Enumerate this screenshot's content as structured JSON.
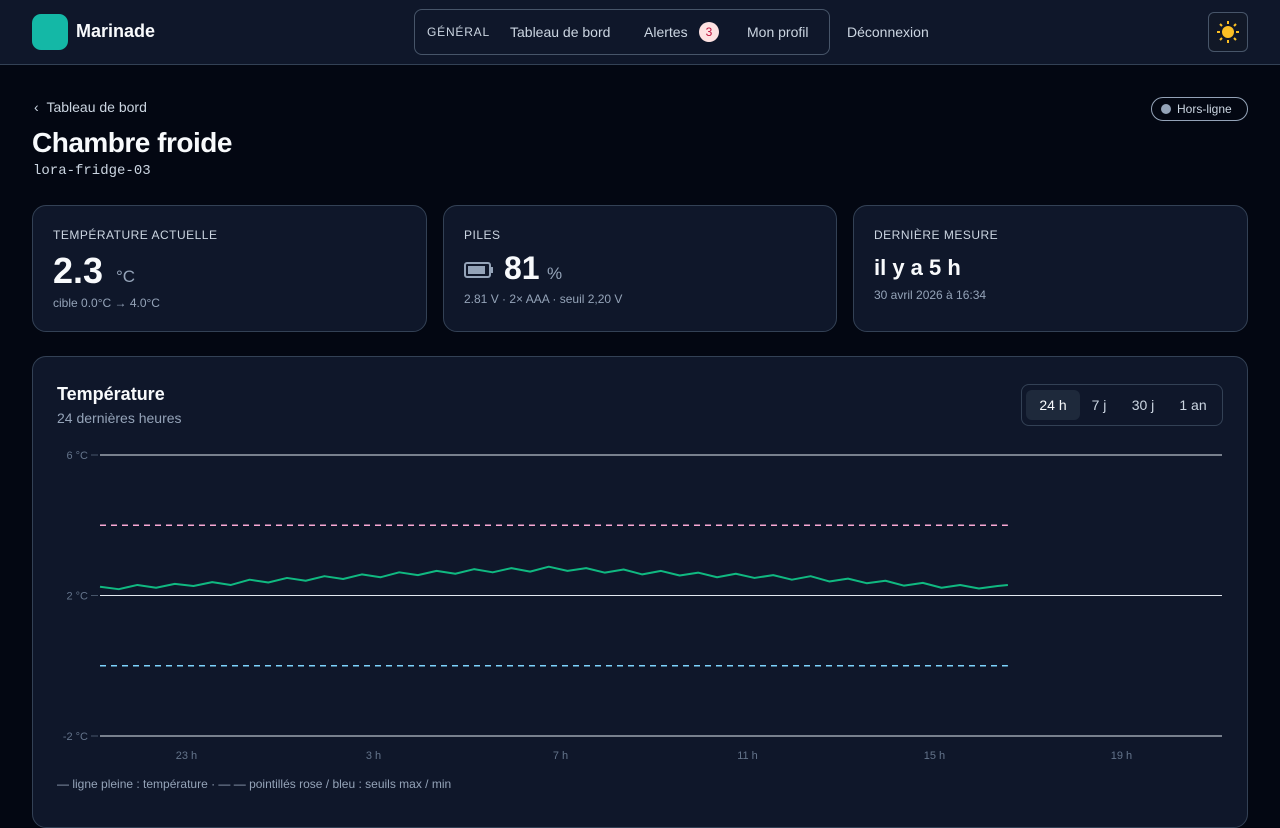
{
  "header": {
    "brand": "Marinade",
    "nav_section": "GÉNÉRAL",
    "nav": [
      "Tableau de bord",
      "Alertes",
      "Mon profil"
    ],
    "alert_count": 3,
    "logout": "Déconnexion"
  },
  "breadcrumb": "Tableau de bord",
  "status": "Hors-ligne",
  "title": "Chambre froide",
  "device_id": "lora-fridge-03",
  "cards": [
    {
      "label": "TEMPÉRATURE ACTUELLE",
      "value": 2.3,
      "unit": "°C",
      "detail": "cible 0.0°C → 4.0°C"
    },
    {
      "label": "PILES",
      "value": 81,
      "unit": "%",
      "detail": "2.81 V · 2× AAA · seuil 2,20 V"
    },
    {
      "label": "DERNIÈRE MESURE",
      "value": "il y a 5 h",
      "detail": "30 avril 2026 à 16:34"
    }
  ],
  "chart_data": {
    "type": "line",
    "title": "Température",
    "subtitle": "24 dernières heures",
    "ranges": [
      "24 h",
      "7 j",
      "30 j",
      "1 an"
    ],
    "selected_range": 0,
    "color": "#10b981",
    "x": [
      21.15,
      21.55,
      21.95,
      22.35,
      22.75,
      23.15,
      23.55,
      23.95,
      24.35,
      24.75,
      25.15,
      25.55,
      25.95,
      26.35,
      26.75,
      27.15,
      27.55,
      27.95,
      28.35,
      28.75,
      29.15,
      29.55,
      29.95,
      30.35,
      30.75,
      31.15,
      31.55,
      31.95,
      32.35,
      32.75,
      33.15,
      33.55,
      33.95,
      34.35,
      34.75,
      35.15,
      35.55,
      35.95,
      36.35,
      36.75,
      37.15,
      37.55,
      37.95,
      38.35,
      38.75,
      39.15,
      39.55,
      39.95,
      40.35,
      40.57
    ],
    "values": [
      2.25,
      2.18,
      2.3,
      2.22,
      2.33,
      2.27,
      2.38,
      2.3,
      2.45,
      2.37,
      2.5,
      2.42,
      2.55,
      2.47,
      2.6,
      2.52,
      2.66,
      2.58,
      2.7,
      2.62,
      2.75,
      2.66,
      2.78,
      2.68,
      2.82,
      2.7,
      2.78,
      2.65,
      2.74,
      2.6,
      2.7,
      2.57,
      2.65,
      2.52,
      2.62,
      2.5,
      2.58,
      2.45,
      2.55,
      2.4,
      2.48,
      2.35,
      2.42,
      2.28,
      2.36,
      2.22,
      2.3,
      2.2,
      2.27,
      2.3
    ],
    "thresholds": [
      {
        "value": 4,
        "color": "#f9a8d4"
      },
      {
        "value": 0,
        "color": "#7dd3fc"
      }
    ],
    "xlim": [
      21.15,
      45.15
    ],
    "xticks": [
      {
        "value": 23,
        "label": "23 h"
      },
      {
        "value": 27,
        "label": "3 h"
      },
      {
        "value": 31,
        "label": "7 h"
      },
      {
        "value": 35,
        "label": "11 h"
      },
      {
        "value": 39,
        "label": "15 h"
      },
      {
        "value": 43,
        "label": "19 h"
      }
    ],
    "ylim": [
      -2,
      6
    ],
    "yticks": [
      {
        "value": -2,
        "label": "-2 °C"
      },
      {
        "value": 2,
        "label": "2 °C"
      },
      {
        "value": 6,
        "label": "6 °C"
      }
    ],
    "grid": true,
    "note": "— ligne pleine : température · — — pointillés rose / bleu : seuils max / min"
  }
}
